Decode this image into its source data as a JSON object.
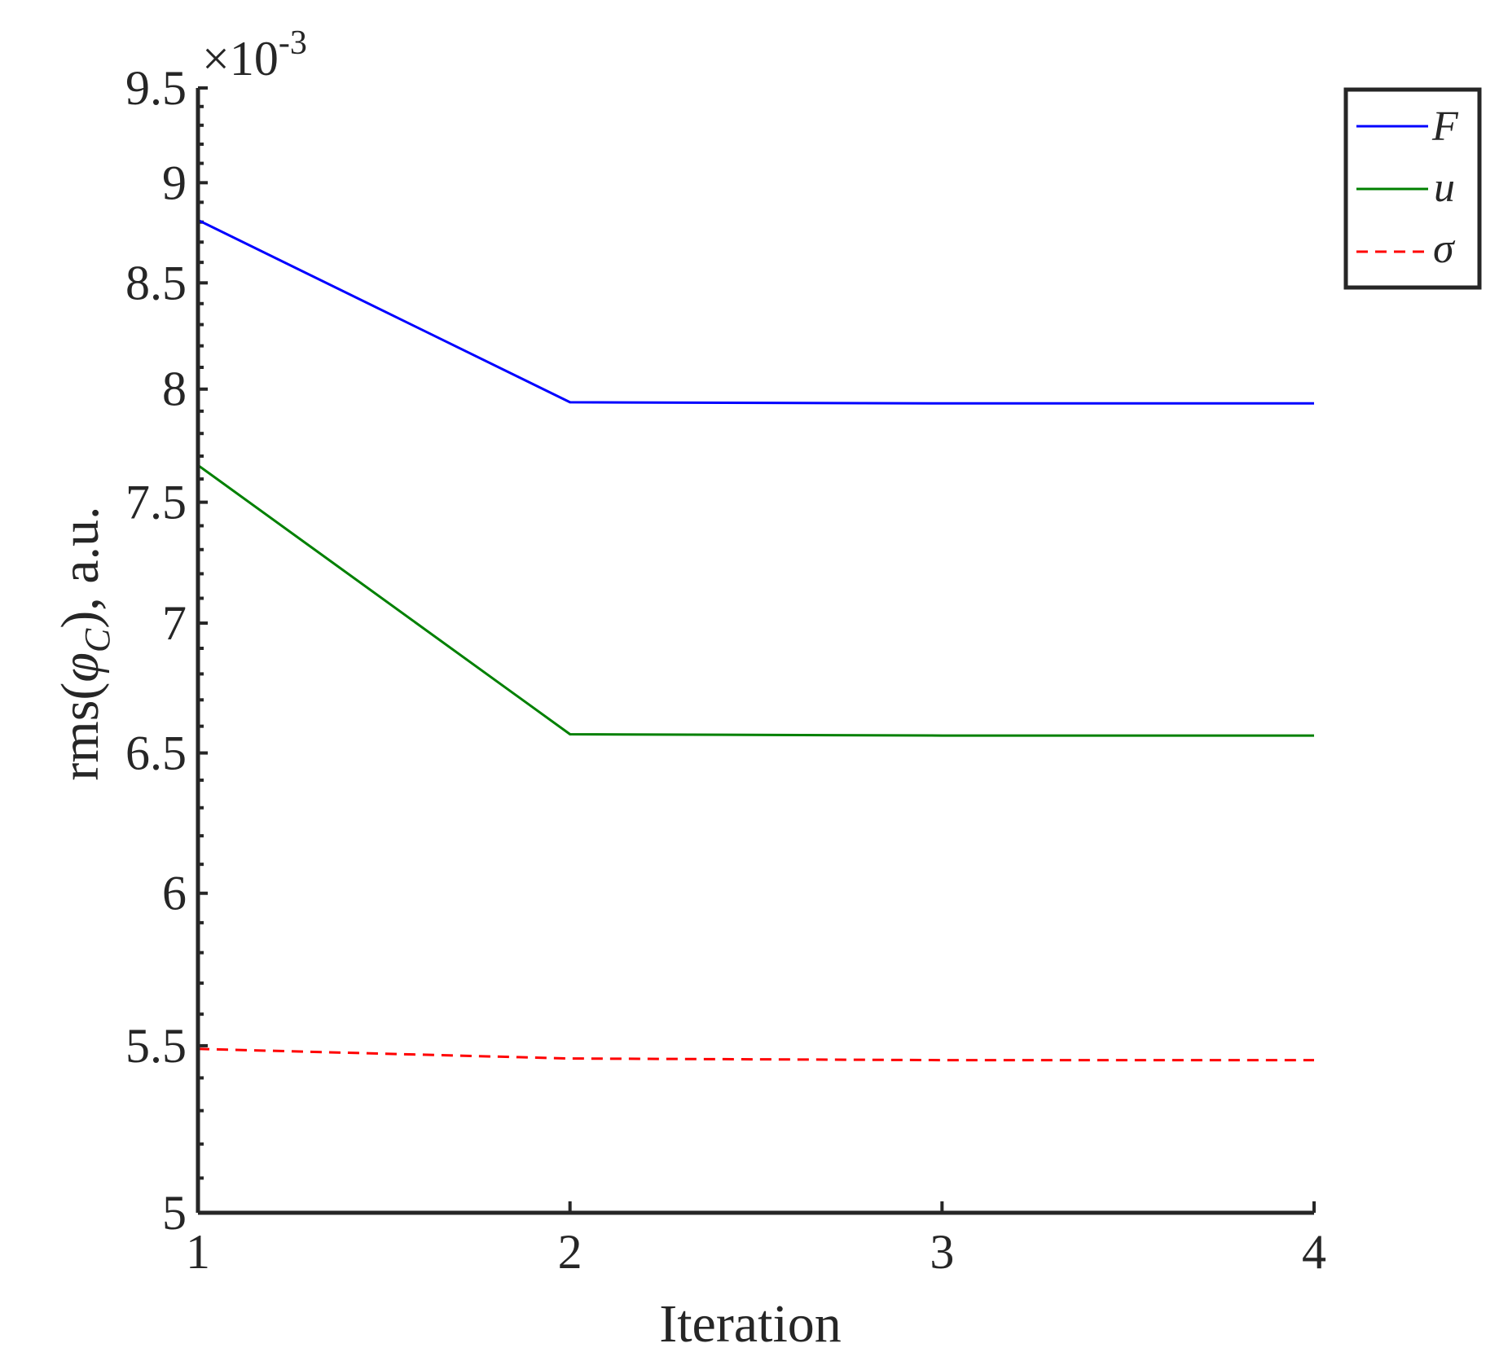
{
  "chart_data": {
    "type": "line",
    "title": "",
    "xlabel": "Iteration",
    "ylabel": {
      "prefix": "rms(",
      "symbol": "φ",
      "subscript": "C",
      "suffix": "), a.u."
    },
    "y_exponent": {
      "times": "×10",
      "power": "-3"
    },
    "x": [
      1,
      2,
      3,
      4
    ],
    "xlim": [
      1,
      4
    ],
    "xticks": [
      "1",
      "2",
      "3",
      "4"
    ],
    "ylim": [
      5,
      9.5
    ],
    "yticks": [
      "5",
      "5.5",
      "6",
      "6.5",
      "7",
      "7.5",
      "8",
      "8.5",
      "9",
      "9.5"
    ],
    "grid": false,
    "legend_position": "top-right",
    "series": [
      {
        "name": "F",
        "label": "F",
        "values": [
          8.81,
          7.94,
          7.935,
          7.935
        ],
        "color": "#0000ff",
        "style": "solid"
      },
      {
        "name": "u",
        "label": "u",
        "values": [
          7.66,
          6.57,
          6.565,
          6.565
        ],
        "color": "#008000",
        "style": "solid"
      },
      {
        "name": "sigma",
        "label": "σ",
        "values": [
          5.49,
          5.46,
          5.455,
          5.455
        ],
        "color": "#ff0000",
        "style": "dashed"
      }
    ]
  }
}
